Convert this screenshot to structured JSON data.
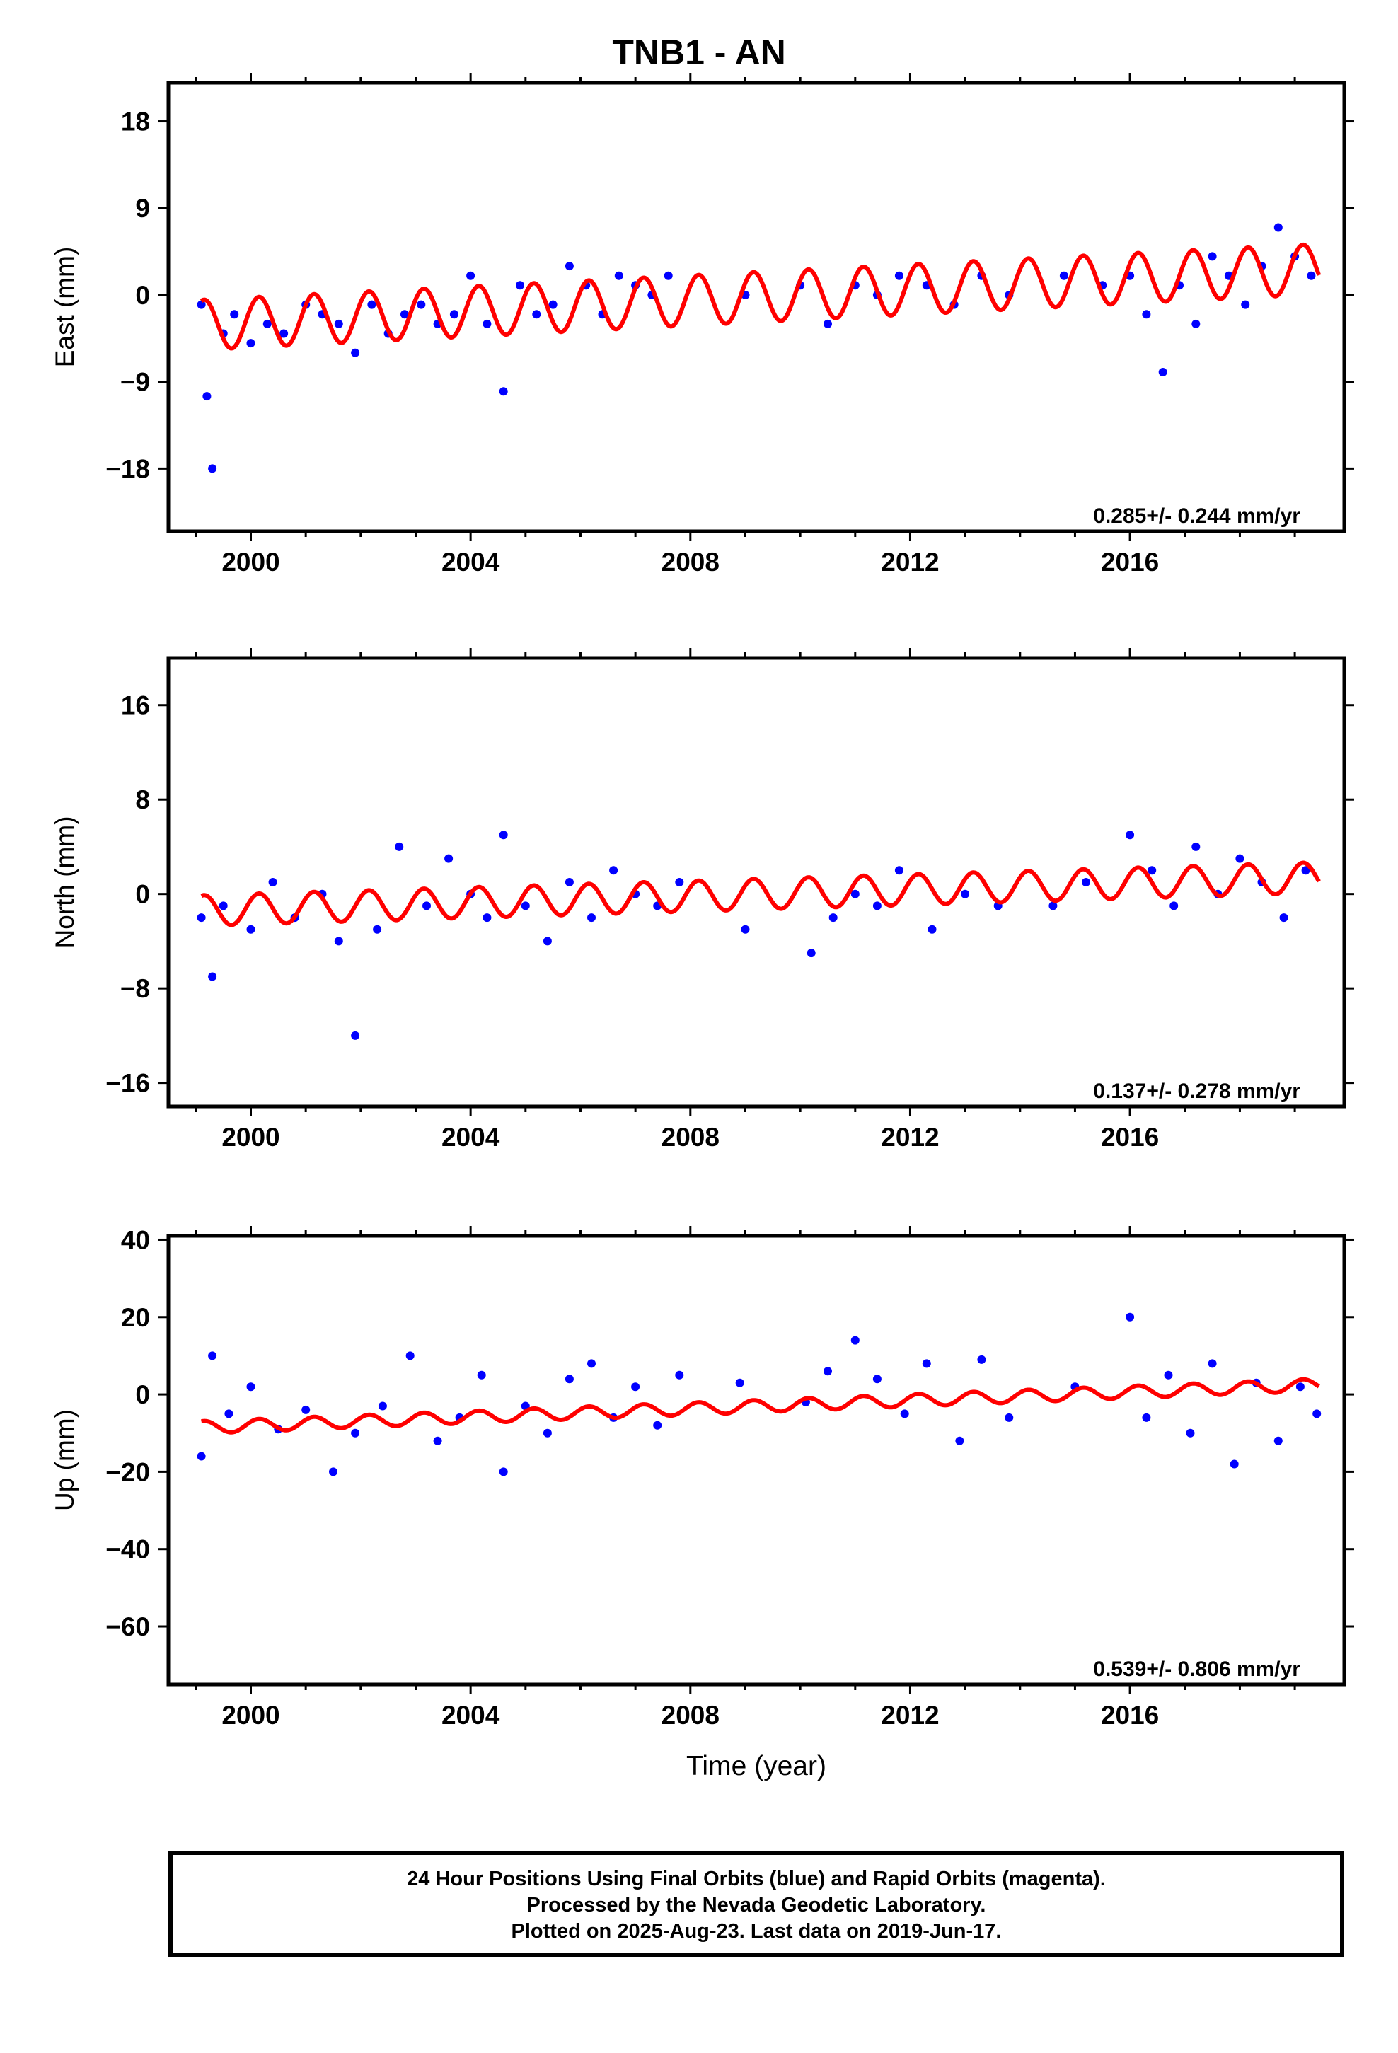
{
  "title": "TNB1 - AN",
  "xlabel": "Time (year)",
  "footer": {
    "line1": "24 Hour Positions Using Final Orbits (blue) and Rapid Orbits (magenta).",
    "line2": "Processed by the Nevada Geodetic Laboratory.",
    "line3": "Plotted on 2025-Aug-23. Last data on 2019-Jun-17."
  },
  "colors": {
    "points": "#0000ff",
    "model": "#ff0000",
    "frame": "#000000"
  },
  "chart_data": [
    {
      "type": "scatter",
      "ylabel": "East (mm)",
      "xlim": [
        1998.5,
        2019.9
      ],
      "ylim": [
        -24.5,
        22
      ],
      "xticks": [
        2000,
        2004,
        2008,
        2012,
        2016
      ],
      "yticks": [
        18,
        9,
        0,
        -9,
        -18
      ],
      "rate_label": "0.285+/- 0.244 mm/yr",
      "model": {
        "intercept": -3.1,
        "rate": 0.285,
        "amplitude": 2.6,
        "phase": 0.2,
        "start": 1999.1,
        "end": 2019.45
      },
      "series": [
        {
          "x": [
            1999.1,
            1999.2,
            1999.3,
            1999.5,
            1999.7,
            2000.0,
            2000.3,
            2000.6,
            2001.0,
            2001.3,
            2001.6,
            2001.9,
            2002.2,
            2002.5,
            2002.8,
            2003.1,
            2003.4,
            2003.7,
            2004.0,
            2004.3,
            2004.6,
            2004.9,
            2005.2,
            2005.5,
            2005.8,
            2006.1,
            2006.4,
            2006.7,
            2007.0,
            2007.3,
            2007.6,
            2009.0,
            2010.0,
            2010.5,
            2011.0,
            2011.4,
            2011.8,
            2012.3,
            2012.8,
            2013.3,
            2013.8,
            2014.8,
            2015.5,
            2016.0,
            2016.3,
            2016.6,
            2016.9,
            2017.2,
            2017.5,
            2017.8,
            2018.1,
            2018.4,
            2018.7,
            2019.0,
            2019.3
          ],
          "y": [
            -1,
            -10.5,
            -18,
            -4,
            -2,
            -5,
            -3,
            -4,
            -1,
            -2,
            -3,
            -6,
            -1,
            -4,
            -2,
            -1,
            -3,
            -2,
            2,
            -3,
            -10,
            1,
            -2,
            -1,
            3,
            1,
            -2,
            2,
            1,
            0,
            2,
            0,
            1,
            -3,
            1,
            0,
            2,
            1,
            -1,
            2,
            0,
            2,
            1,
            2,
            -2,
            -8,
            1,
            -3,
            4,
            2,
            -1,
            3,
            7,
            4,
            2
          ]
        }
      ]
    },
    {
      "type": "scatter",
      "ylabel": "North (mm)",
      "xlim": [
        1998.5,
        2019.9
      ],
      "ylim": [
        -18,
        20
      ],
      "xticks": [
        2000,
        2004,
        2008,
        2012,
        2016
      ],
      "yticks": [
        16,
        8,
        0,
        -8,
        -16
      ],
      "rate_label": "0.137+/- 0.278 mm/yr",
      "model": {
        "intercept": -1.4,
        "rate": 0.137,
        "amplitude": 1.3,
        "phase": 0.2,
        "start": 1999.1,
        "end": 2019.45
      },
      "series": [
        {
          "x": [
            1999.1,
            1999.3,
            1999.5,
            2000.0,
            2000.4,
            2000.8,
            2001.3,
            2001.6,
            2001.9,
            2002.3,
            2002.7,
            2003.2,
            2003.6,
            2004.0,
            2004.3,
            2004.6,
            2005.0,
            2005.4,
            2005.8,
            2006.2,
            2006.6,
            2007.0,
            2007.4,
            2007.8,
            2009.0,
            2010.2,
            2010.6,
            2011.0,
            2011.4,
            2011.8,
            2012.4,
            2013.0,
            2013.6,
            2014.6,
            2015.2,
            2016.0,
            2016.4,
            2016.8,
            2017.2,
            2017.6,
            2018.0,
            2018.4,
            2018.8,
            2019.2
          ],
          "y": [
            -2,
            -7,
            -1,
            -3,
            1,
            -2,
            0,
            -4,
            -12,
            -3,
            4,
            -1,
            3,
            0,
            -2,
            5,
            -1,
            -4,
            1,
            -2,
            2,
            0,
            -1,
            1,
            -3,
            -5,
            -2,
            0,
            -1,
            2,
            -3,
            0,
            -1,
            -1,
            1,
            5,
            2,
            -1,
            4,
            0,
            3,
            1,
            -2,
            2
          ]
        }
      ]
    },
    {
      "type": "scatter",
      "ylabel": "Up (mm)",
      "xlim": [
        1998.5,
        2019.9
      ],
      "ylim": [
        -75,
        41
      ],
      "xticks": [
        2000,
        2004,
        2008,
        2012,
        2016
      ],
      "yticks": [
        40,
        20,
        0,
        -20,
        -40,
        -60
      ],
      "rate_label": "0.539+/- 0.806 mm/yr",
      "model": {
        "intercept": -8.5,
        "rate": 0.539,
        "amplitude": 1.6,
        "phase": 0.2,
        "start": 1999.1,
        "end": 2019.45
      },
      "series": [
        {
          "x": [
            1999.1,
            1999.3,
            1999.6,
            2000.0,
            2000.5,
            2001.0,
            2001.5,
            2001.9,
            2002.4,
            2002.9,
            2003.4,
            2003.8,
            2004.2,
            2004.6,
            2005.0,
            2005.4,
            2005.8,
            2006.2,
            2006.6,
            2007.0,
            2007.4,
            2007.8,
            2008.9,
            2010.1,
            2010.5,
            2011.0,
            2011.4,
            2011.9,
            2012.3,
            2012.9,
            2013.3,
            2013.8,
            2015.0,
            2016.0,
            2016.3,
            2016.7,
            2017.1,
            2017.5,
            2017.9,
            2018.3,
            2018.7,
            2019.1,
            2019.4
          ],
          "y": [
            -16,
            10,
            -5,
            2,
            -9,
            -4,
            -20,
            -10,
            -3,
            10,
            -12,
            -6,
            5,
            -20,
            -3,
            -10,
            4,
            8,
            -6,
            2,
            -8,
            5,
            3,
            -2,
            6,
            14,
            4,
            -5,
            8,
            -12,
            9,
            -6,
            2,
            20,
            -6,
            5,
            -10,
            8,
            -18,
            3,
            -12,
            2,
            -5
          ]
        }
      ]
    }
  ]
}
